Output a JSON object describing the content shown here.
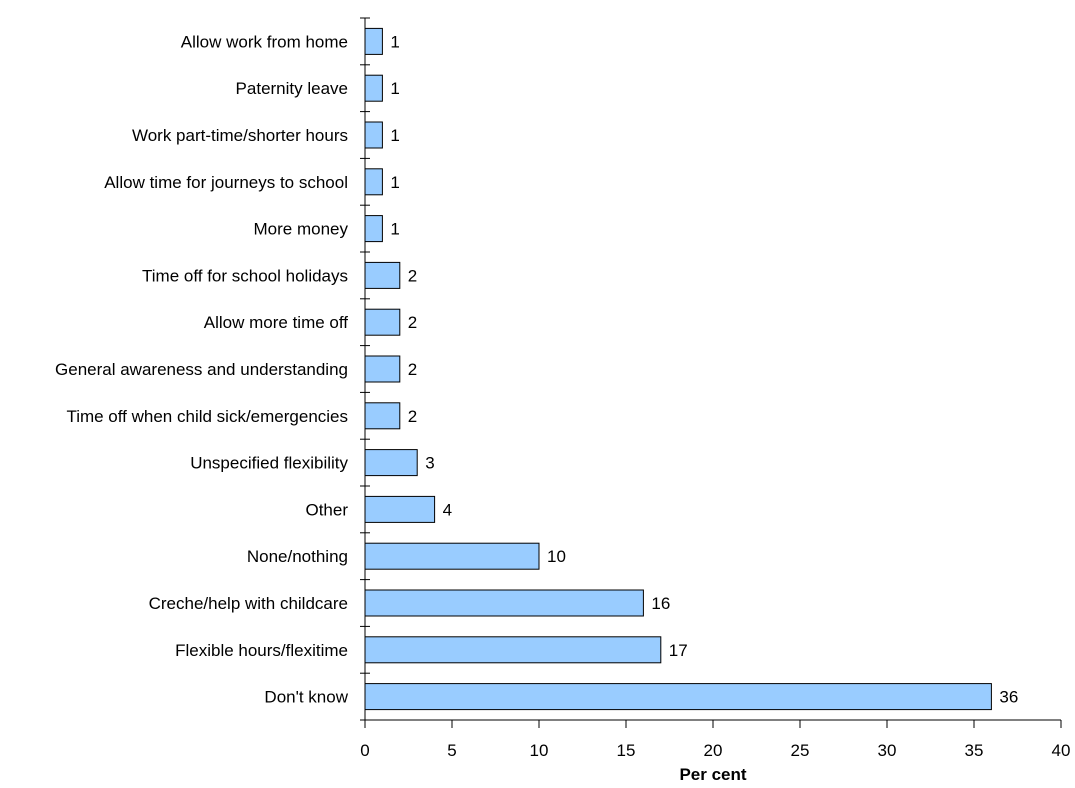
{
  "chart_data": {
    "type": "bar",
    "orientation": "horizontal",
    "title": "",
    "xlabel": "Per cent",
    "ylabel": "",
    "xlim": [
      0,
      40
    ],
    "xticks": [
      0,
      5,
      10,
      15,
      20,
      25,
      30,
      35,
      40
    ],
    "grid": false,
    "legend": "none",
    "bar_color": "#99CCFF",
    "bar_edge_color": "#000000",
    "categories": [
      "Allow work from home",
      "Paternity leave",
      "Work part-time/shorter hours",
      "Allow time for journeys to school",
      "More money",
      "Time off for school holidays",
      "Allow more time off",
      "General awareness and understanding",
      "Time off when child sick/emergencies",
      "Unspecified flexibility",
      "Other",
      "None/nothing",
      "Creche/help with childcare",
      "Flexible hours/flexitime",
      "Don't know"
    ],
    "values": [
      1,
      1,
      1,
      1,
      1,
      2,
      2,
      2,
      2,
      3,
      4,
      10,
      16,
      17,
      36
    ]
  }
}
